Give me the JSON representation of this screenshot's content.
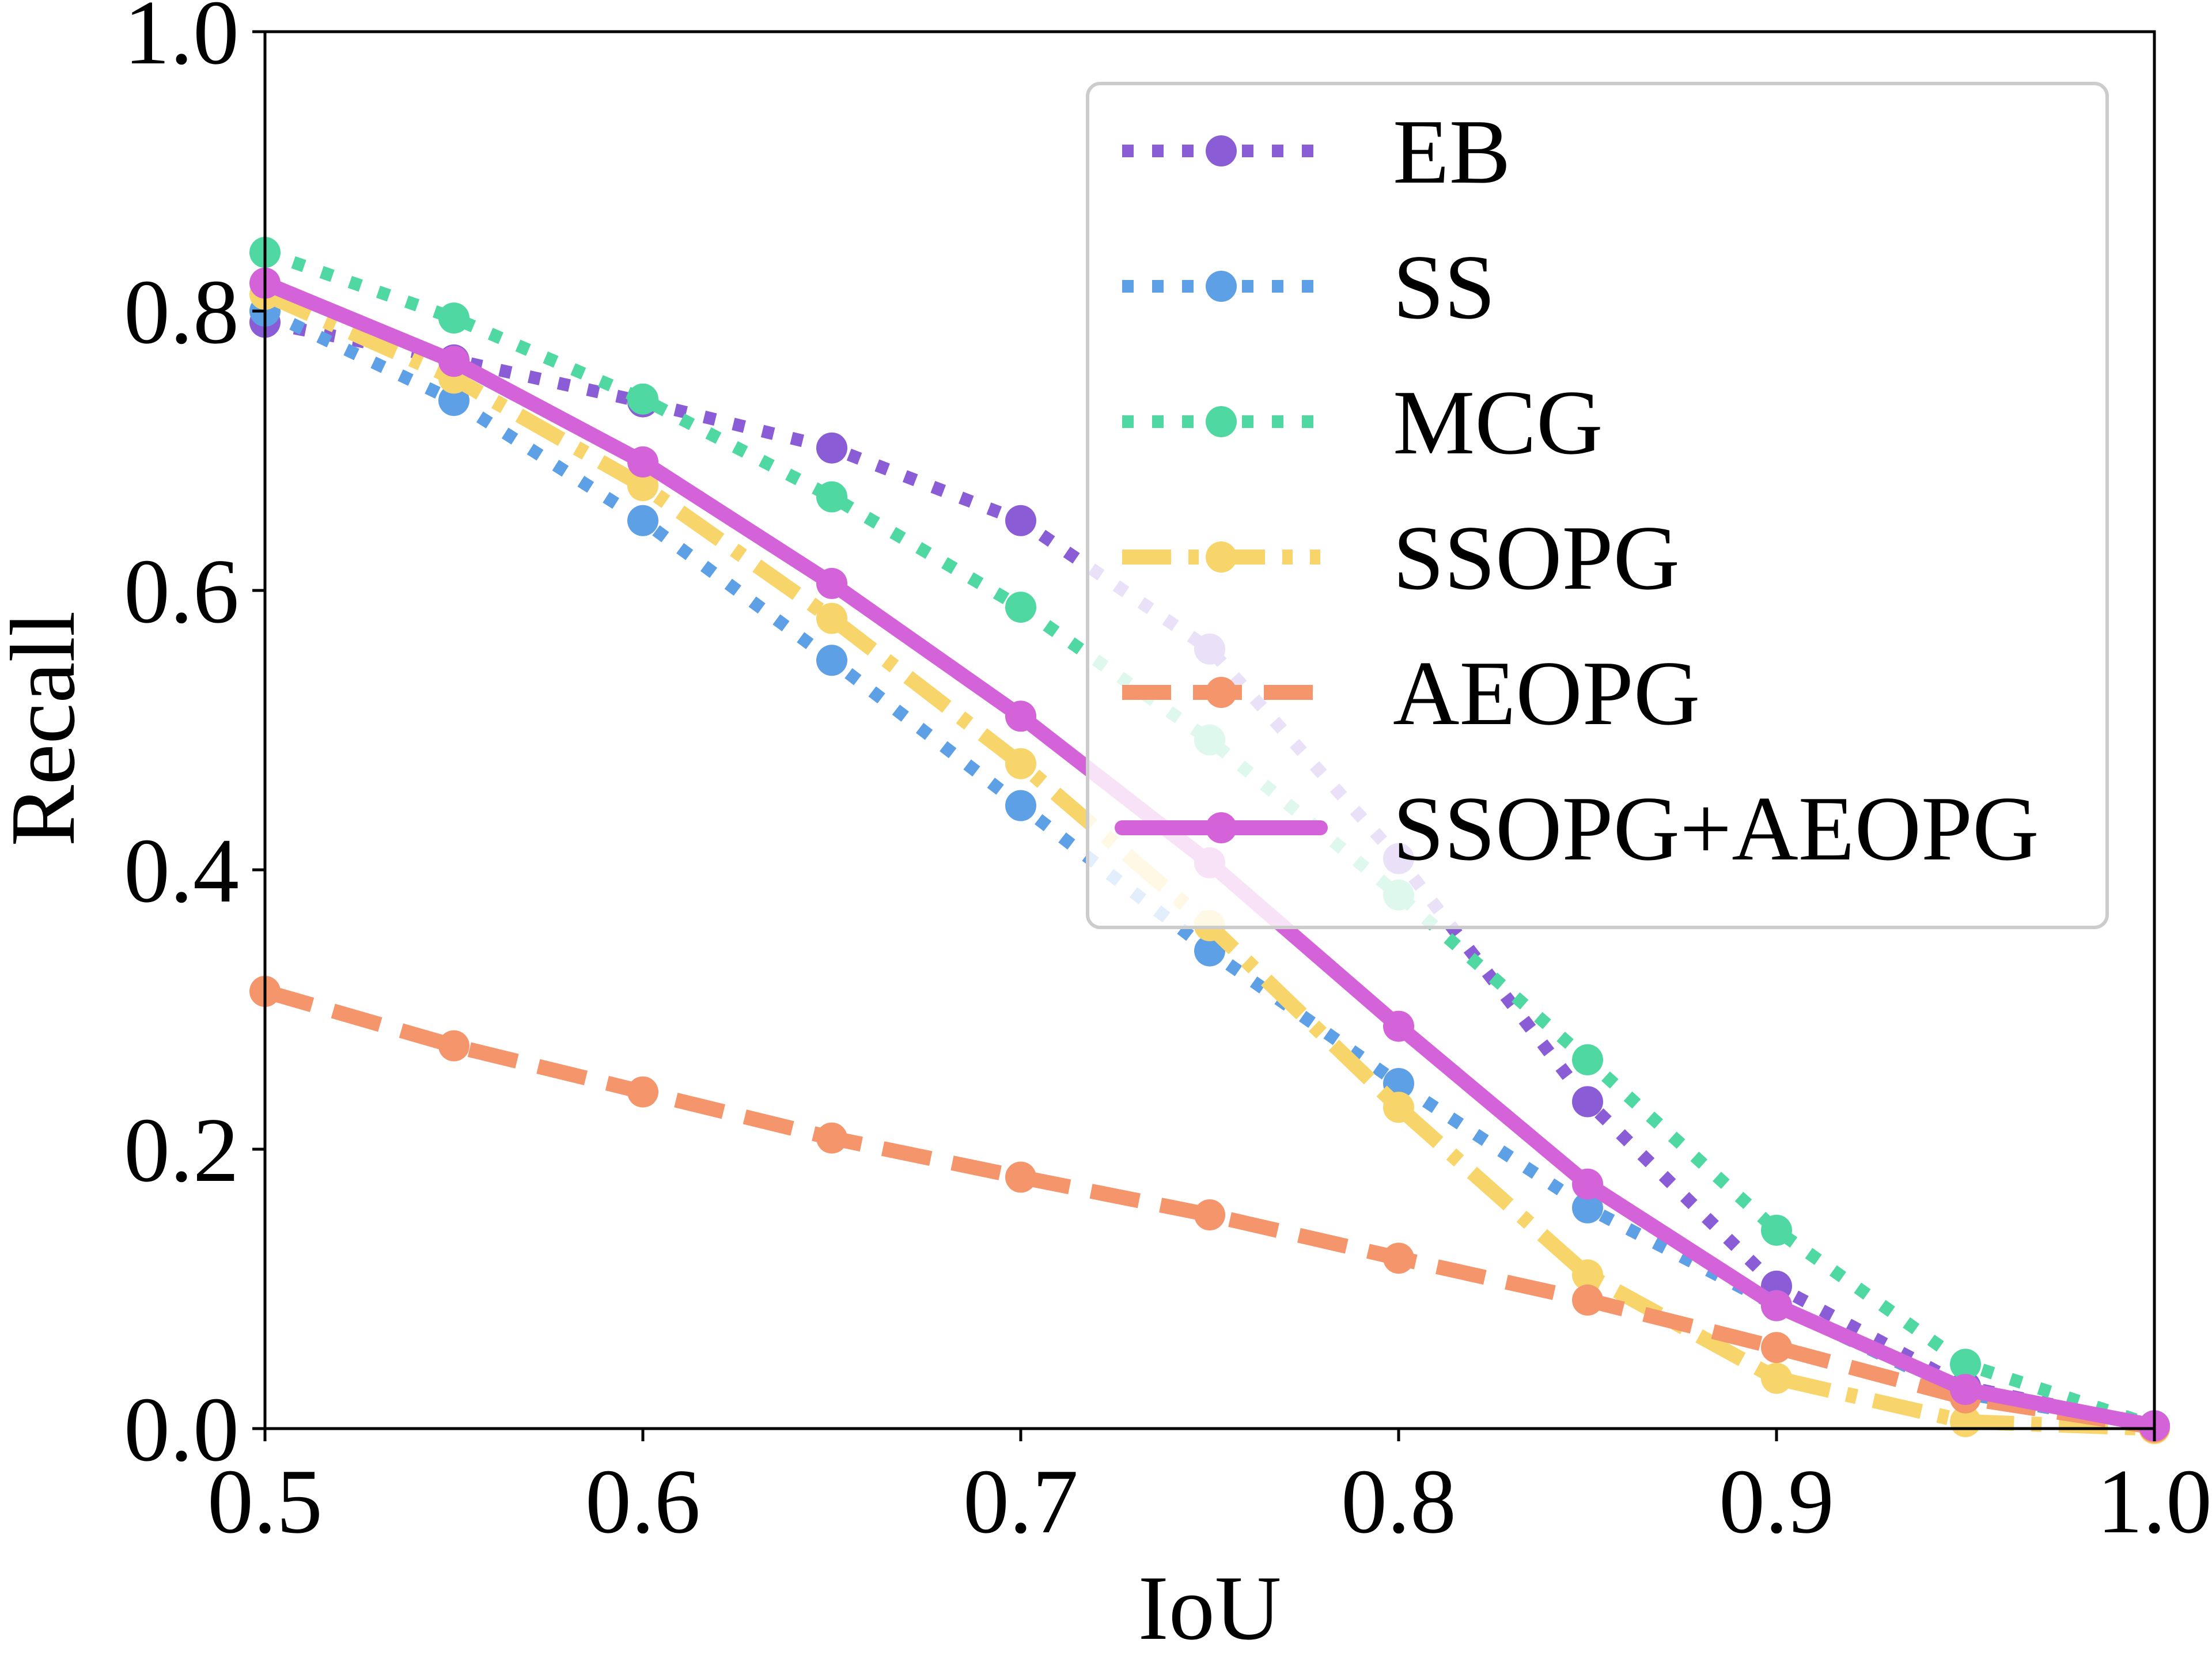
{
  "chart_data": {
    "type": "line",
    "title": "",
    "xlabel": "IoU",
    "ylabel": "Recall",
    "xlim": [
      0.5,
      1.0
    ],
    "ylim": [
      0.0,
      1.0
    ],
    "x_ticks": [
      "0.5",
      "0.6",
      "0.7",
      "0.8",
      "0.9",
      "1.0"
    ],
    "y_ticks": [
      "0.0",
      "0.2",
      "0.4",
      "0.6",
      "0.8",
      "1.0"
    ],
    "x": [
      0.5,
      0.55,
      0.6,
      0.65,
      0.7,
      0.75,
      0.8,
      0.85,
      0.9,
      0.95,
      1.0
    ],
    "legend_position": "upper-right",
    "grid": false,
    "series": [
      {
        "name": "EB",
        "color": "#8a5cd6",
        "style": "dotted",
        "values": [
          0.792,
          0.765,
          0.735,
          0.702,
          0.65,
          0.558,
          0.408,
          0.234,
          0.102,
          0.03,
          0.002
        ]
      },
      {
        "name": "SS",
        "color": "#5ea0e6",
        "style": "dotted",
        "values": [
          0.8,
          0.736,
          0.65,
          0.55,
          0.446,
          0.342,
          0.247,
          0.158,
          0.088,
          0.025,
          0.002
        ]
      },
      {
        "name": "MCG",
        "color": "#4fd8a2",
        "style": "dotted",
        "values": [
          0.842,
          0.795,
          0.737,
          0.667,
          0.588,
          0.493,
          0.382,
          0.264,
          0.142,
          0.046,
          0.002
        ]
      },
      {
        "name": "SSOPG",
        "color": "#f7d56a",
        "style": "dashdot",
        "values": [
          0.812,
          0.752,
          0.675,
          0.58,
          0.476,
          0.36,
          0.23,
          0.11,
          0.036,
          0.005,
          0.0
        ]
      },
      {
        "name": "AEOPG",
        "color": "#f4956b",
        "style": "dashed",
        "values": [
          0.313,
          0.274,
          0.241,
          0.208,
          0.18,
          0.153,
          0.122,
          0.092,
          0.058,
          0.022,
          0.001
        ]
      },
      {
        "name": "SSOPG+AEOPG",
        "color": "#d462d8",
        "style": "solid",
        "values": [
          0.82,
          0.764,
          0.692,
          0.605,
          0.51,
          0.405,
          0.288,
          0.175,
          0.088,
          0.028,
          0.002
        ]
      }
    ]
  }
}
